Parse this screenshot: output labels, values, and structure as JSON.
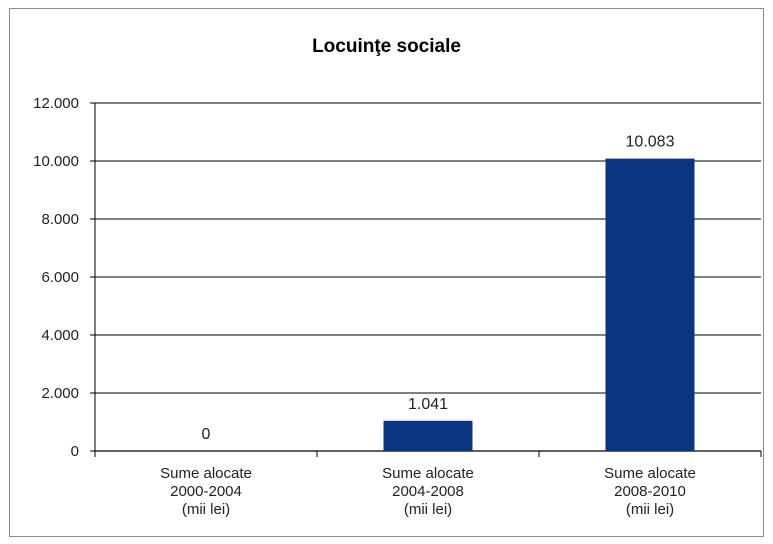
{
  "chart_data": {
    "type": "bar",
    "title": "Locuinţe sociale",
    "xlabel": "",
    "ylabel": "",
    "categories": [
      [
        "Sume alocate",
        "2000-2004",
        "(mii lei)"
      ],
      [
        "Sume alocate",
        "2004-2008",
        "(mii lei)"
      ],
      [
        "Sume alocate",
        "2008-2010",
        "(mii lei)"
      ]
    ],
    "values": [
      0,
      1041,
      10083
    ],
    "data_labels": [
      "0",
      "1.041",
      "10.083"
    ],
    "ylim": [
      0,
      12000
    ],
    "yticks": [
      0,
      2000,
      4000,
      6000,
      8000,
      10000,
      12000
    ],
    "ytick_labels": [
      "0",
      "2.000",
      "4.000",
      "6.000",
      "8.000",
      "10.000",
      "12.000"
    ],
    "grid": true,
    "bar_color": "#0b3580",
    "legend": "none"
  }
}
